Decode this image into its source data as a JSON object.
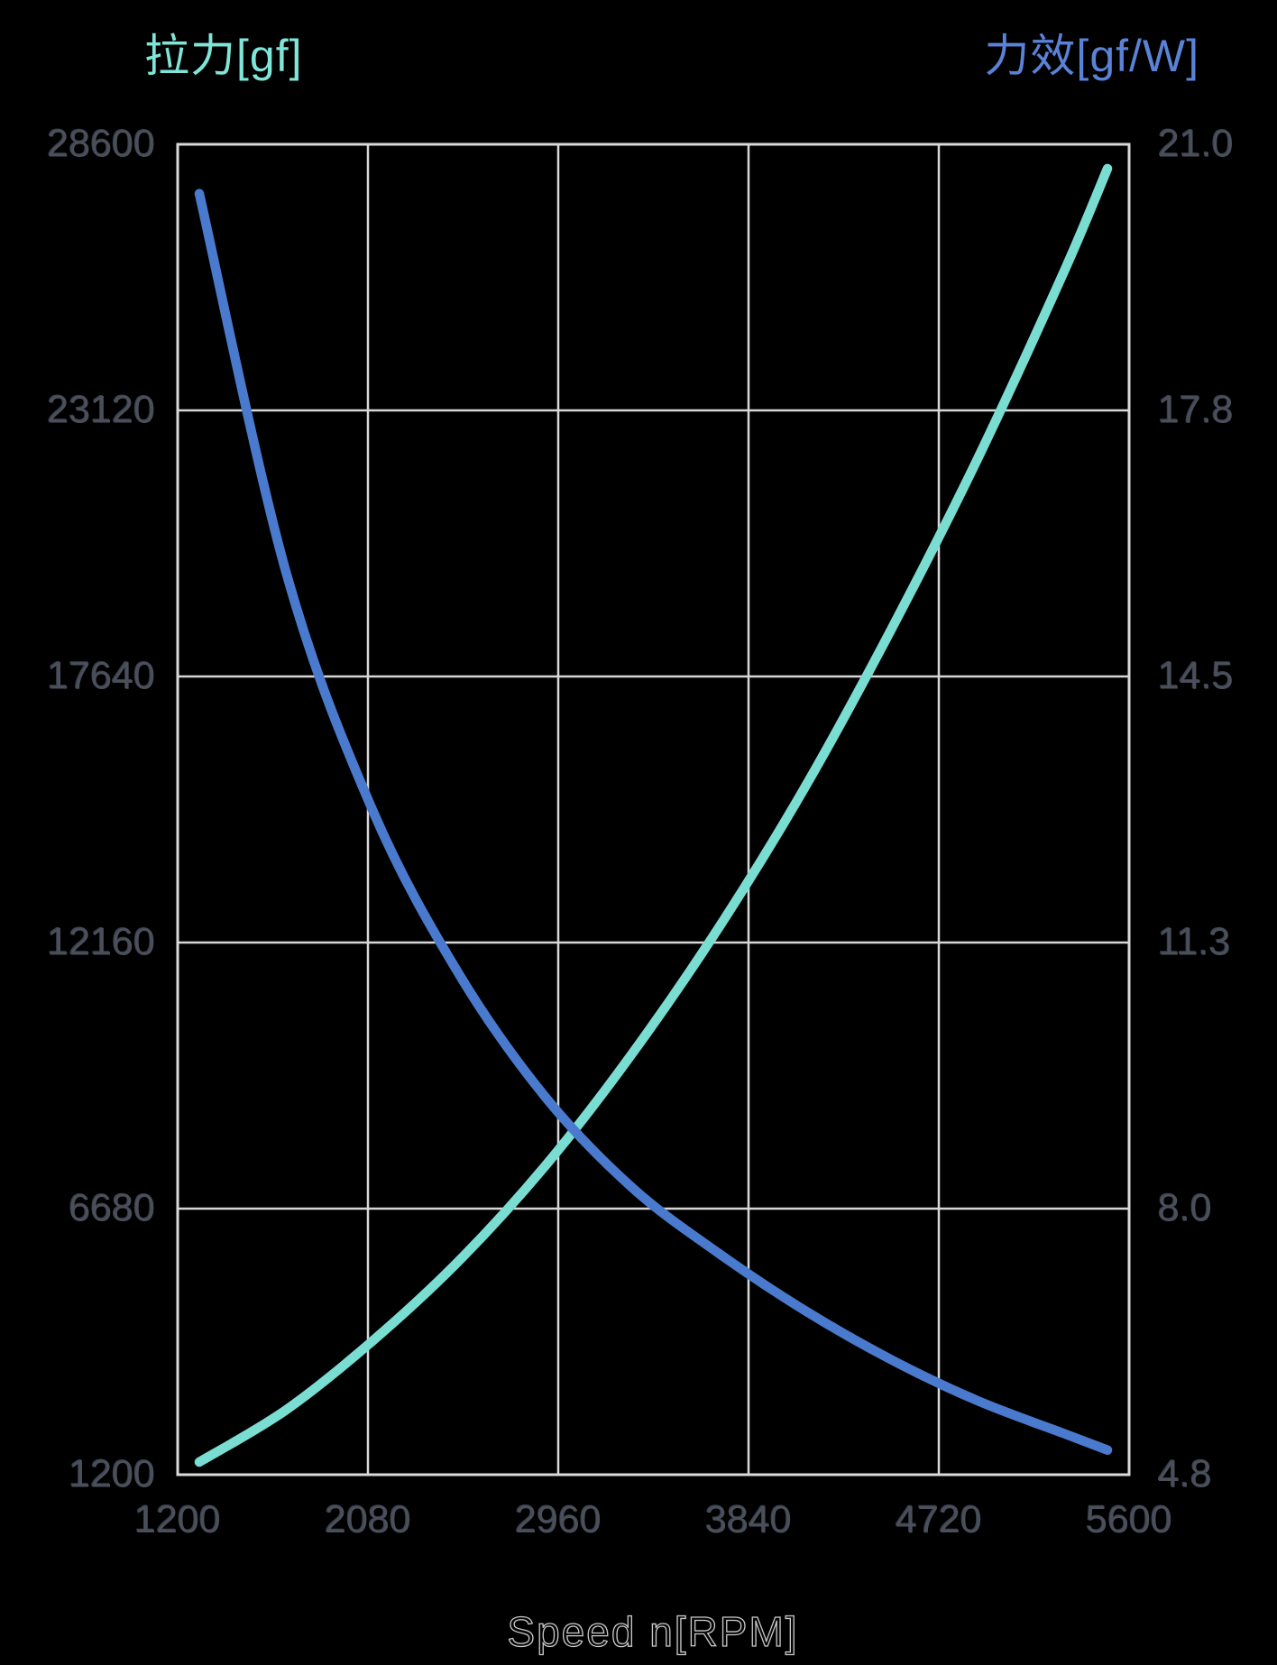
{
  "chart_data": {
    "type": "line",
    "title": "",
    "background": "#000000",
    "grid": true,
    "grid_color": "#d7d7d7",
    "frame_color": "#dadada",
    "tick_label_color": "#4a4f5a",
    "x_axis": {
      "label": "Speed n[RPM]",
      "label_color": "#c9c9c9",
      "min": 1200,
      "max": 5600,
      "ticks": [
        1200,
        2080,
        2960,
        3840,
        4720,
        5600
      ]
    },
    "y_left": {
      "label": "拉力[gf]",
      "label_color": "#7fe5d8",
      "min": 1200,
      "max": 28600,
      "ticks": [
        28600,
        23120,
        17640,
        12160,
        6680,
        1200
      ]
    },
    "y_right": {
      "label": "力效[gf/W]",
      "label_color": "#5a82d7",
      "min": 4.8,
      "max": 21.0,
      "ticks": [
        "21.0",
        "17.8",
        "14.5",
        "11.3",
        "8.0",
        "4.8"
      ]
    },
    "series": [
      {
        "name": "拉力",
        "axis": "left",
        "unit": "gf",
        "color": "#79ddd2",
        "x": [
          1300,
          1700,
          2100,
          2500,
          2900,
          3300,
          3700,
          4100,
          4500,
          4900,
          5300,
          5500
        ],
        "values": [
          1460,
          2530,
          3950,
          5600,
          7560,
          9860,
          12450,
          15350,
          18610,
          22130,
          25990,
          28100
        ]
      },
      {
        "name": "力效",
        "axis": "right",
        "unit": "gf/W",
        "color": "#4a7acd",
        "x": [
          1300,
          1700,
          2100,
          2500,
          2900,
          3300,
          3700,
          4100,
          4500,
          4900,
          5300,
          5500
        ],
        "values": [
          20.4,
          15.8,
          12.9,
          10.9,
          9.4,
          8.3,
          7.5,
          6.8,
          6.2,
          5.7,
          5.3,
          5.1
        ]
      }
    ]
  }
}
